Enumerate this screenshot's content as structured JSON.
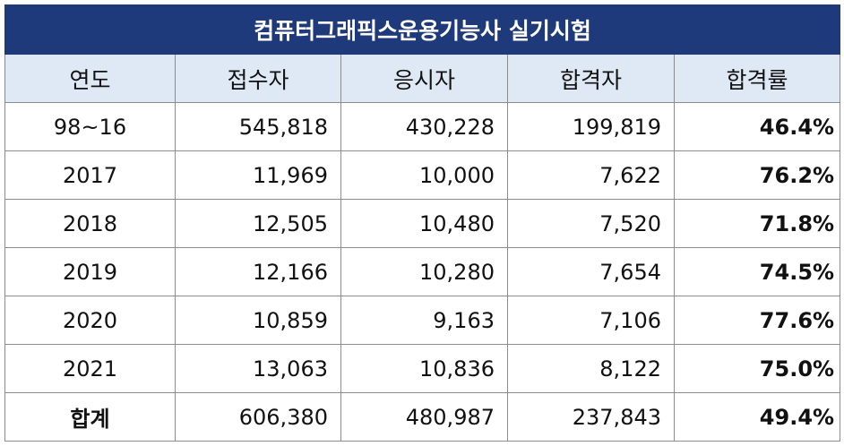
{
  "title": "컴퓨터그래픽스운용기능사 실기시험",
  "headers": [
    "연도",
    "접수자",
    "응시자",
    "합격자",
    "합격률"
  ],
  "rows": [
    {
      "year": "98~16",
      "applicants": "545,818",
      "examinees": "430,228",
      "passers": "199,819",
      "rate": "46.4%"
    },
    {
      "year": "2017",
      "applicants": "11,969",
      "examinees": "10,000",
      "passers": "7,622",
      "rate": "76.2%"
    },
    {
      "year": "2018",
      "applicants": "12,505",
      "examinees": "10,480",
      "passers": "7,520",
      "rate": "71.8%"
    },
    {
      "year": "2019",
      "applicants": "12,166",
      "examinees": "10,280",
      "passers": "7,654",
      "rate": "74.5%"
    },
    {
      "year": "2020",
      "applicants": "10,859",
      "examinees": "9,163",
      "passers": "7,106",
      "rate": "77.6%"
    },
    {
      "year": "2021",
      "applicants": "13,063",
      "examinees": "10,836",
      "passers": "8,122",
      "rate": "75.0%"
    }
  ],
  "total": {
    "label": "합계",
    "applicants": "606,380",
    "examinees": "480,987",
    "passers": "237,843",
    "rate": "49.4%"
  },
  "colors": {
    "title_bg": "#1f3a7a",
    "header_bg": "#dfe9f5",
    "border": "#8c8c8c"
  }
}
